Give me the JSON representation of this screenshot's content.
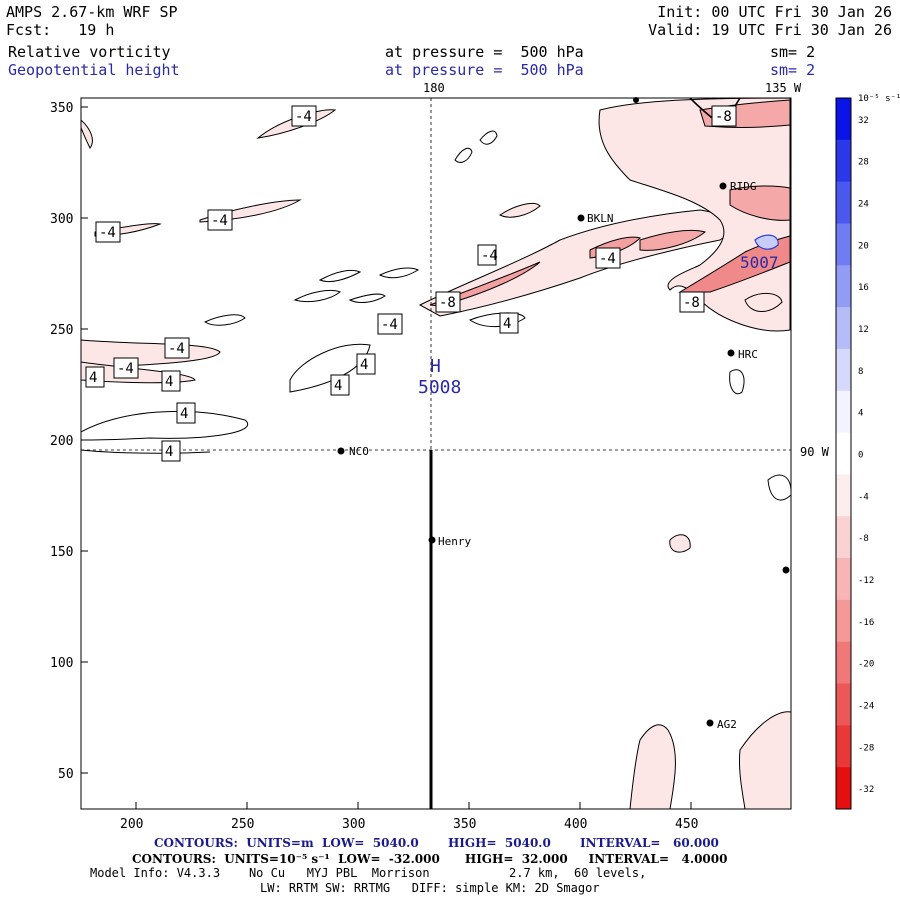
{
  "header": {
    "title": "AMPS 2.67-km WRF SP",
    "forecast": "Fcst:   19 h",
    "init": "Init: 00 UTC Fri 30 Jan 26",
    "valid": "Valid: 19 UTC Fri 30 Jan 26",
    "field1": "Relative vorticity",
    "field2": "Geopotential height",
    "level1": "at pressure =  500 hPa",
    "level2": "at pressure =  500 hPa",
    "sm1": "sm= 2",
    "sm2": "sm= 2"
  },
  "map": {
    "x_ticks": [
      "200",
      "250",
      "300",
      "350",
      "400",
      "450"
    ],
    "y_ticks": [
      "350",
      "300",
      "250",
      "200",
      "150",
      "100",
      "50"
    ],
    "meridian_labels": {
      "top_180": "180",
      "top_135w": "135 W",
      "right_90w": "90 W"
    },
    "high_label": "H",
    "high_value": "5008",
    "high_value_right": "5007",
    "stations": [
      {
        "name": "NCO"
      },
      {
        "name": "Henry"
      },
      {
        "name": "HRC"
      },
      {
        "name": "AG2"
      },
      {
        "name": "RIDG"
      },
      {
        "name": "BKLN"
      },
      {
        "name": ""
      }
    ],
    "contour_labels": [
      "-4",
      "-4",
      "-4",
      "-4",
      "-4",
      "-4",
      "-8",
      "-8",
      "-4",
      "4",
      "4",
      "4",
      "4",
      "4",
      "4",
      "4",
      "-4",
      "-8"
    ]
  },
  "colorbar": {
    "units": "10⁻⁵ s⁻¹",
    "levels": [
      "32",
      "28",
      "24",
      "20",
      "16",
      "12",
      "8",
      "4",
      "0",
      "-4",
      "-8",
      "-12",
      "-16",
      "-20",
      "-24",
      "-28",
      "-32"
    ],
    "colors": [
      "#0a14e6",
      "#2a38ea",
      "#4a58ee",
      "#6f7cf2",
      "#929cf5",
      "#b5bcf8",
      "#d5d9fb",
      "#f2f3fe",
      "#ffffff",
      "#fdeeee",
      "#fad2d2",
      "#f7b5b5",
      "#f49898",
      "#f07878",
      "#ec5858",
      "#e83838",
      "#e41010"
    ]
  },
  "footer": {
    "line1": "CONTOURS:  UNITS=m  LOW=  5040.0       HIGH=  5040.0       INTERVAL=   60.000",
    "line2": "CONTOURS:  UNITS=10⁻⁵ s⁻¹  LOW=  -32.000      HIGH=  32.000     INTERVAL=   4.0000",
    "line3": "Model Info: V4.3.3    No Cu   MYJ PBL  Morrison           2.7 km,  60 levels,",
    "line4": "LW: RRTM SW: RRTMG   DIFF: simple KM: 2D Smagor"
  },
  "colors": {
    "height_contour": "#2a2aa6",
    "vort_negative": "#f4a8a8",
    "vort_positive": "#7b86f0"
  }
}
